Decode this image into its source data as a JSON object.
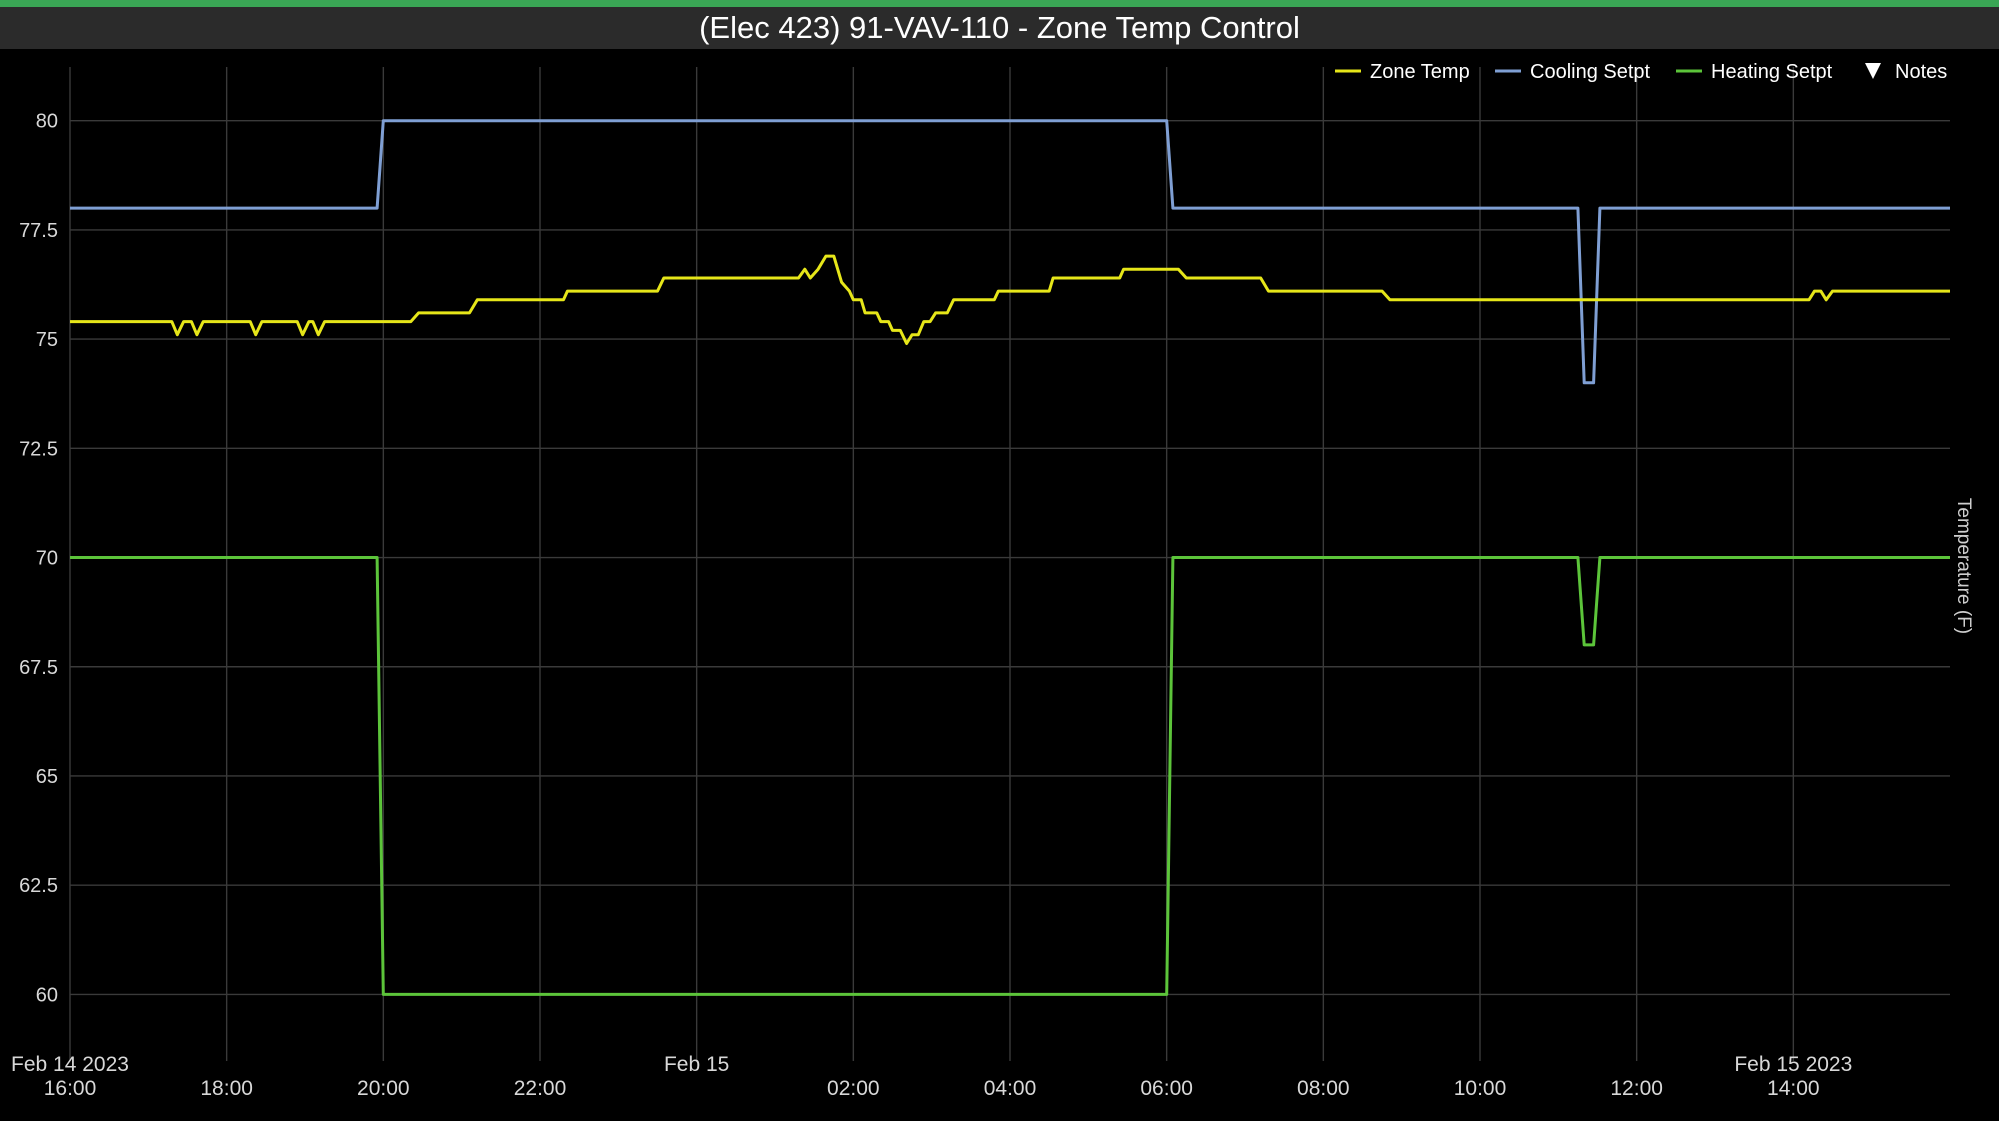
{
  "header": {
    "title": "(Elec 423) 91-VAV-110 - Zone Temp Control"
  },
  "colors": {
    "accent": "#3aa655",
    "zone": "#e6e619",
    "cooling": "#7f9fd4",
    "heating": "#5cc43a"
  },
  "chart_data": {
    "type": "line",
    "title": "(Elec 423) 91-VAV-110 - Zone Temp Control",
    "ylabel": "Temperature (F)",
    "ylim": [
      58.75,
      81
    ],
    "y_ticks": [
      "60",
      "62.5",
      "65",
      "67.5",
      "70",
      "72.5",
      "75",
      "77.5",
      "80"
    ],
    "x_range_hours": [
      16,
      40
    ],
    "x_ticks": [
      {
        "t": 16,
        "top": "Feb 14 2023",
        "bottom": "16:00"
      },
      {
        "t": 18,
        "top": "",
        "bottom": "18:00"
      },
      {
        "t": 20,
        "top": "",
        "bottom": "20:00"
      },
      {
        "t": 22,
        "top": "",
        "bottom": "22:00"
      },
      {
        "t": 24,
        "top": "Feb 15",
        "bottom": ""
      },
      {
        "t": 26,
        "top": "",
        "bottom": "02:00"
      },
      {
        "t": 28,
        "top": "",
        "bottom": "04:00"
      },
      {
        "t": 30,
        "top": "",
        "bottom": "06:00"
      },
      {
        "t": 32,
        "top": "",
        "bottom": "08:00"
      },
      {
        "t": 34,
        "top": "",
        "bottom": "10:00"
      },
      {
        "t": 36,
        "top": "",
        "bottom": "12:00"
      },
      {
        "t": 38,
        "top": "Feb 15 2023",
        "bottom": "14:00"
      }
    ],
    "legend": [
      "Zone Temp",
      "Cooling Setpt",
      "Heating Setpt",
      "Notes"
    ],
    "legend_position": "top-right",
    "grid": true,
    "series": [
      {
        "name": "Zone Temp",
        "color": "#e6e619",
        "points": [
          [
            16,
            75.4
          ],
          [
            17.3,
            75.4
          ],
          [
            17.37,
            75.1
          ],
          [
            17.45,
            75.4
          ],
          [
            17.55,
            75.4
          ],
          [
            17.62,
            75.1
          ],
          [
            17.7,
            75.4
          ],
          [
            18.3,
            75.4
          ],
          [
            18.37,
            75.1
          ],
          [
            18.45,
            75.4
          ],
          [
            18.9,
            75.4
          ],
          [
            18.97,
            75.1
          ],
          [
            19.05,
            75.4
          ],
          [
            19.1,
            75.4
          ],
          [
            19.17,
            75.1
          ],
          [
            19.25,
            75.4
          ],
          [
            20.35,
            75.4
          ],
          [
            20.45,
            75.6
          ],
          [
            21.1,
            75.6
          ],
          [
            21.2,
            75.9
          ],
          [
            22.3,
            75.9
          ],
          [
            22.35,
            76.1
          ],
          [
            23.5,
            76.1
          ],
          [
            23.58,
            76.4
          ],
          [
            25.3,
            76.4
          ],
          [
            25.38,
            76.6
          ],
          [
            25.45,
            76.4
          ],
          [
            25.55,
            76.6
          ],
          [
            25.65,
            76.9
          ],
          [
            25.75,
            76.9
          ],
          [
            25.85,
            76.3
          ],
          [
            25.95,
            76.1
          ],
          [
            26.0,
            75.9
          ],
          [
            26.1,
            75.9
          ],
          [
            26.15,
            75.6
          ],
          [
            26.3,
            75.6
          ],
          [
            26.35,
            75.4
          ],
          [
            26.45,
            75.4
          ],
          [
            26.5,
            75.2
          ],
          [
            26.6,
            75.2
          ],
          [
            26.68,
            74.9
          ],
          [
            26.75,
            75.1
          ],
          [
            26.83,
            75.1
          ],
          [
            26.9,
            75.4
          ],
          [
            26.98,
            75.4
          ],
          [
            27.05,
            75.6
          ],
          [
            27.2,
            75.6
          ],
          [
            27.28,
            75.9
          ],
          [
            27.8,
            75.9
          ],
          [
            27.85,
            76.1
          ],
          [
            28.5,
            76.1
          ],
          [
            28.55,
            76.4
          ],
          [
            29.4,
            76.4
          ],
          [
            29.45,
            76.6
          ],
          [
            30.15,
            76.6
          ],
          [
            30.25,
            76.4
          ],
          [
            31.2,
            76.4
          ],
          [
            31.3,
            76.1
          ],
          [
            32.75,
            76.1
          ],
          [
            32.85,
            75.9
          ],
          [
            36.0,
            75.9
          ],
          [
            38.2,
            75.9
          ],
          [
            38.27,
            76.1
          ],
          [
            38.35,
            76.1
          ],
          [
            38.42,
            75.9
          ],
          [
            38.5,
            76.1
          ],
          [
            40,
            76.1
          ]
        ]
      },
      {
        "name": "Cooling Setpt",
        "color": "#7f9fd4",
        "points": [
          [
            16,
            78
          ],
          [
            19.92,
            78
          ],
          [
            20.0,
            80
          ],
          [
            30.0,
            80
          ],
          [
            30.08,
            78
          ],
          [
            35.25,
            78
          ],
          [
            35.33,
            74
          ],
          [
            35.45,
            74
          ],
          [
            35.53,
            78
          ],
          [
            40,
            78
          ]
        ]
      },
      {
        "name": "Heating Setpt",
        "color": "#5cc43a",
        "points": [
          [
            16,
            70
          ],
          [
            19.92,
            70
          ],
          [
            20.0,
            60
          ],
          [
            30.0,
            60
          ],
          [
            30.08,
            70
          ],
          [
            35.25,
            70
          ],
          [
            35.33,
            68
          ],
          [
            35.45,
            68
          ],
          [
            35.53,
            70
          ],
          [
            40,
            70
          ]
        ]
      }
    ]
  }
}
